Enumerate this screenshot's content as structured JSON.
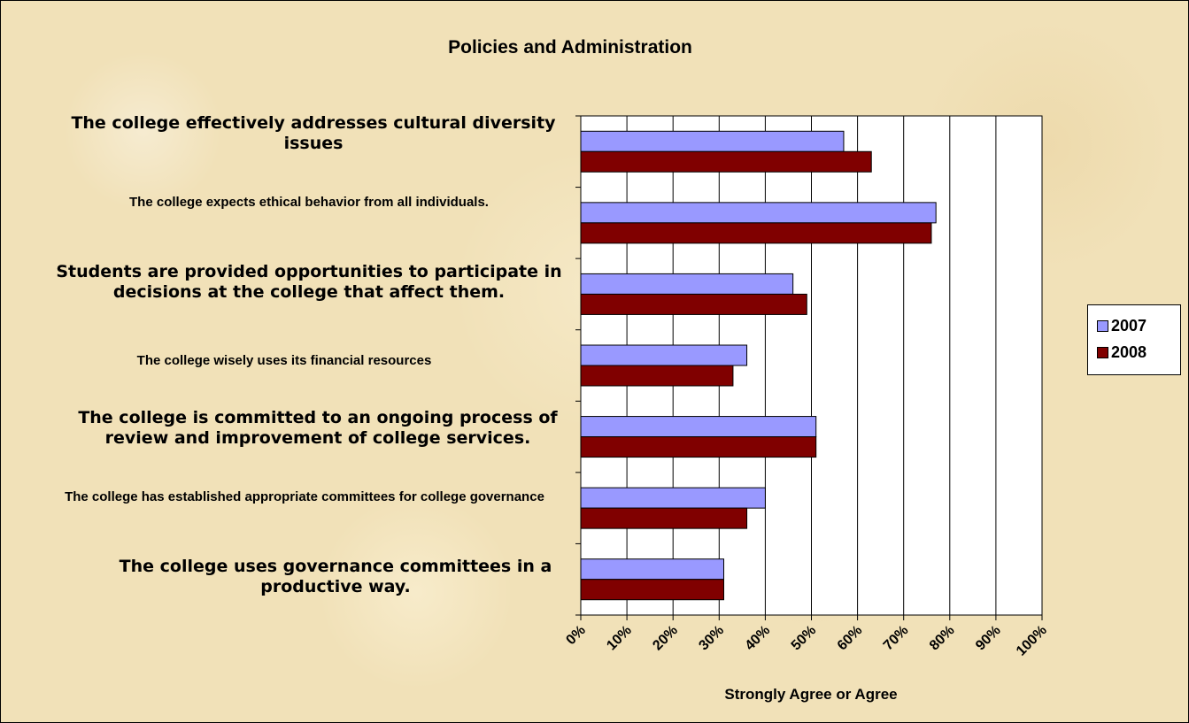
{
  "chart_data": {
    "type": "bar",
    "orientation": "horizontal",
    "title": "Policies and Administration",
    "xlabel": "Strongly Agree or Agree",
    "ylabel": "",
    "xlim": [
      0,
      100
    ],
    "x_ticks": [
      "0%",
      "10%",
      "20%",
      "30%",
      "40%",
      "50%",
      "60%",
      "70%",
      "80%",
      "90%",
      "100%"
    ],
    "grid": "vertical",
    "legend_position": "right",
    "categories": [
      "The college effectively addresses cultural diversity issues",
      "The college expects ethical behavior from all individuals.",
      "Students are provided opportunities to participate in decisions at the college that affect them.",
      "The college wisely uses its financial resources",
      "The college is committed to an ongoing process of review and improvement of college services.",
      "The college has established appropriate committees for college governance",
      "The college uses governance committees in a productive way."
    ],
    "series": [
      {
        "name": "2007",
        "color": "#9999ff",
        "values": [
          57,
          77,
          46,
          36,
          51,
          40,
          31
        ]
      },
      {
        "name": "2008",
        "color": "#800000",
        "values": [
          63,
          76,
          49,
          33,
          51,
          36,
          31
        ]
      }
    ]
  },
  "colors": {
    "background": "#f1e1b8",
    "plot_area": "#ffffff",
    "series_2007": "#9999ff",
    "series_2008": "#800000"
  }
}
